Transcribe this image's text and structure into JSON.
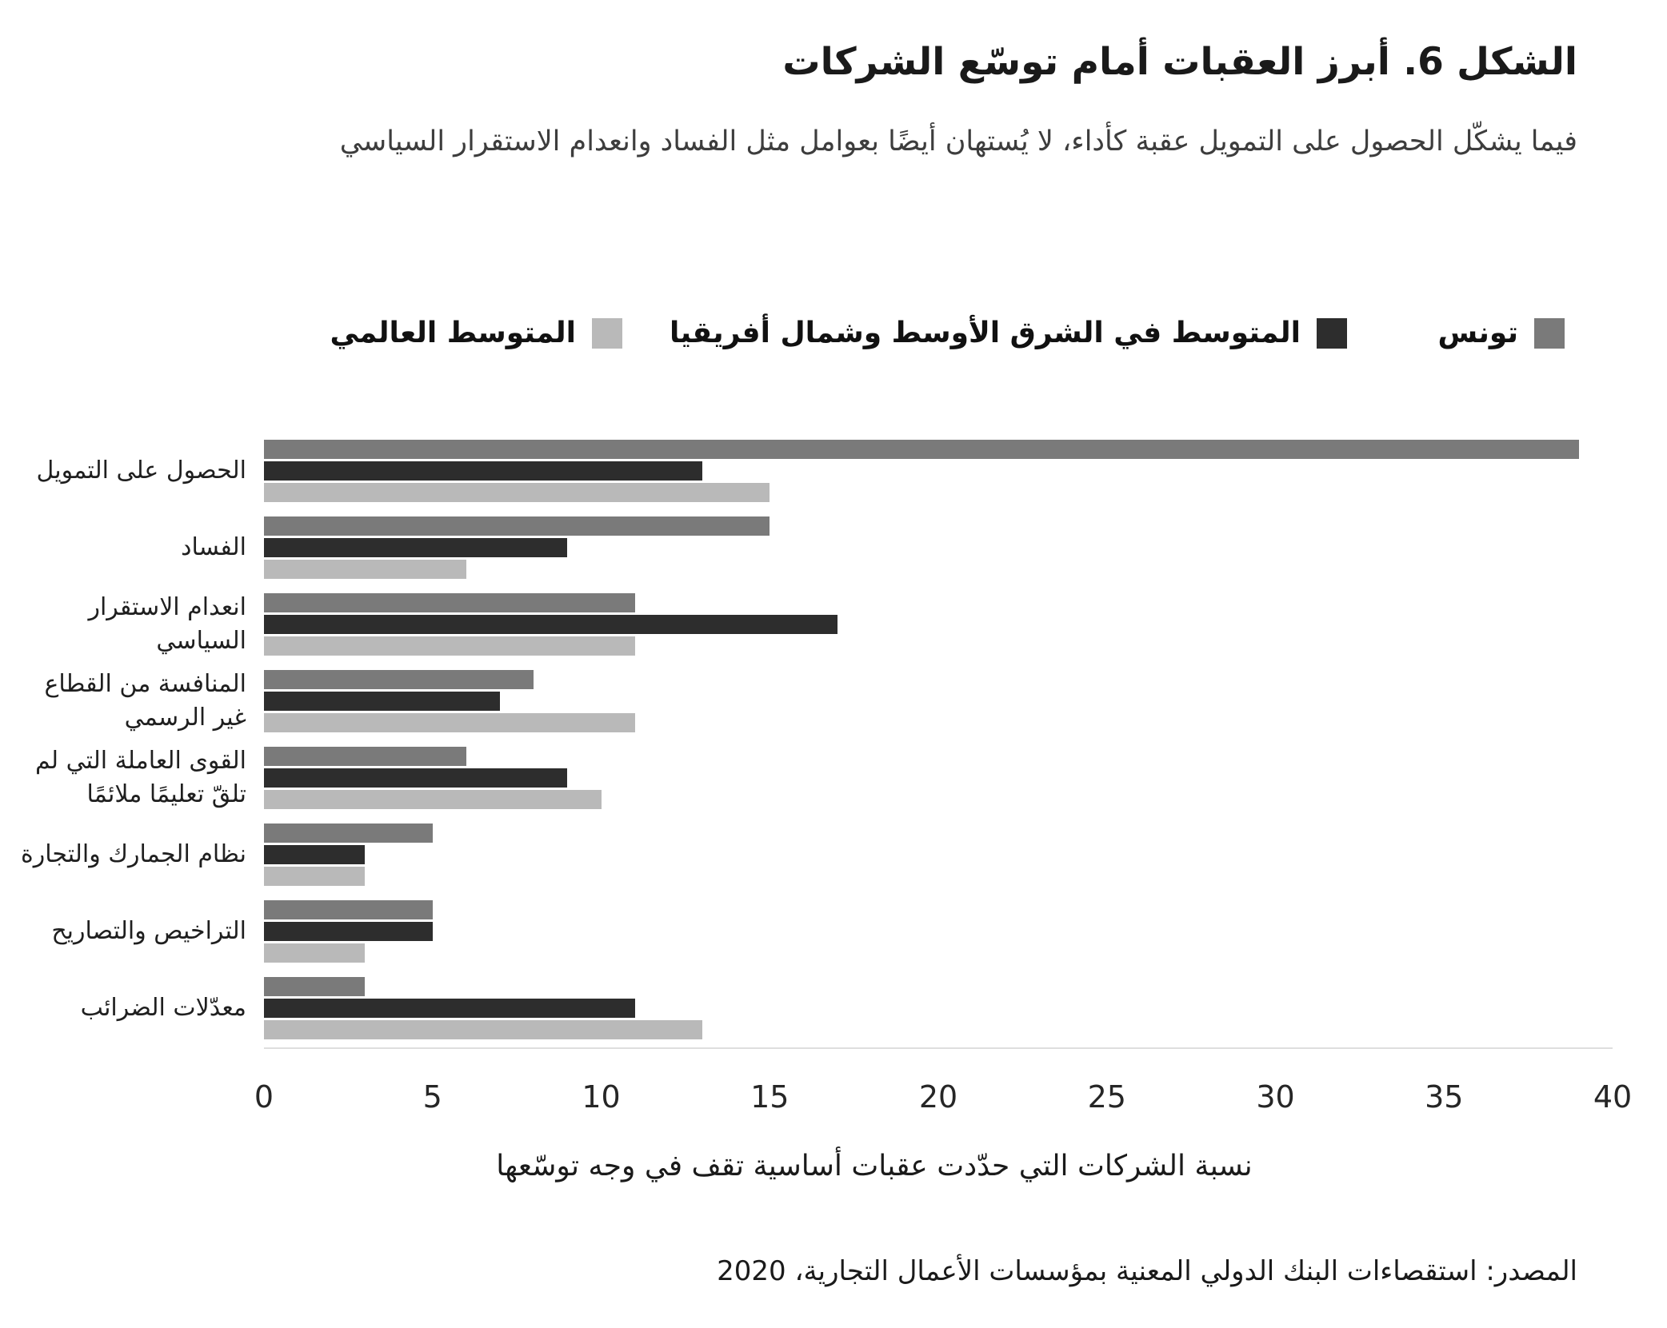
{
  "header": {
    "title": "الشكل 6. أبرز العقبات أمام توسّع الشركات",
    "subtitle": "فيما يشكّل الحصول على التمويل عقبة كأداء، لا يُستهان أيضًا بعوامل مثل الفساد وانعدام الاستقرار السياسي"
  },
  "source_note": "المصدر: استقصاءات البنك الدولي المعنية بمؤسسات الأعمال التجارية، 2020",
  "colors": {
    "tunisia": "#7a7a7a",
    "mena": "#2d2d2d",
    "world": "#b9b9b9",
    "axis_line": "#dedede",
    "text": "#1a1a1a"
  },
  "chart_data": {
    "type": "bar",
    "orientation": "horizontal",
    "title": "الشكل 6. أبرز العقبات أمام توسّع الشركات",
    "xlabel": "نسبة الشركات التي حدّدت عقبات أساسية تقف في وجه توسّعها",
    "ylabel": "",
    "xlim": [
      0,
      40
    ],
    "x_ticks": [
      0,
      5,
      10,
      15,
      20,
      25,
      30,
      35,
      40
    ],
    "grid": false,
    "legend_position": "top",
    "categories": [
      "الحصول على التمويل",
      "الفساد",
      "انعدام الاستقرار السياسي",
      "المنافسة من القطاع غير الرسمي",
      "القوى العاملة التي لم تلقّ تعليمًا ملائمًا",
      "نظام الجمارك والتجارة",
      "التراخيص والتصاريح",
      "معدّلات الضرائب"
    ],
    "series": [
      {
        "name": "تونس",
        "color": "#7a7a7a",
        "values": [
          39,
          15,
          11,
          8,
          6,
          5,
          5,
          3
        ]
      },
      {
        "name": "المتوسط في الشرق الأوسط وشمال أفريقيا",
        "color": "#2d2d2d",
        "values": [
          13,
          9,
          17,
          7,
          9,
          3,
          5,
          11
        ]
      },
      {
        "name": "المتوسط العالمي",
        "color": "#b9b9b9",
        "values": [
          15,
          6,
          11,
          11,
          10,
          3,
          3,
          13
        ]
      }
    ]
  }
}
